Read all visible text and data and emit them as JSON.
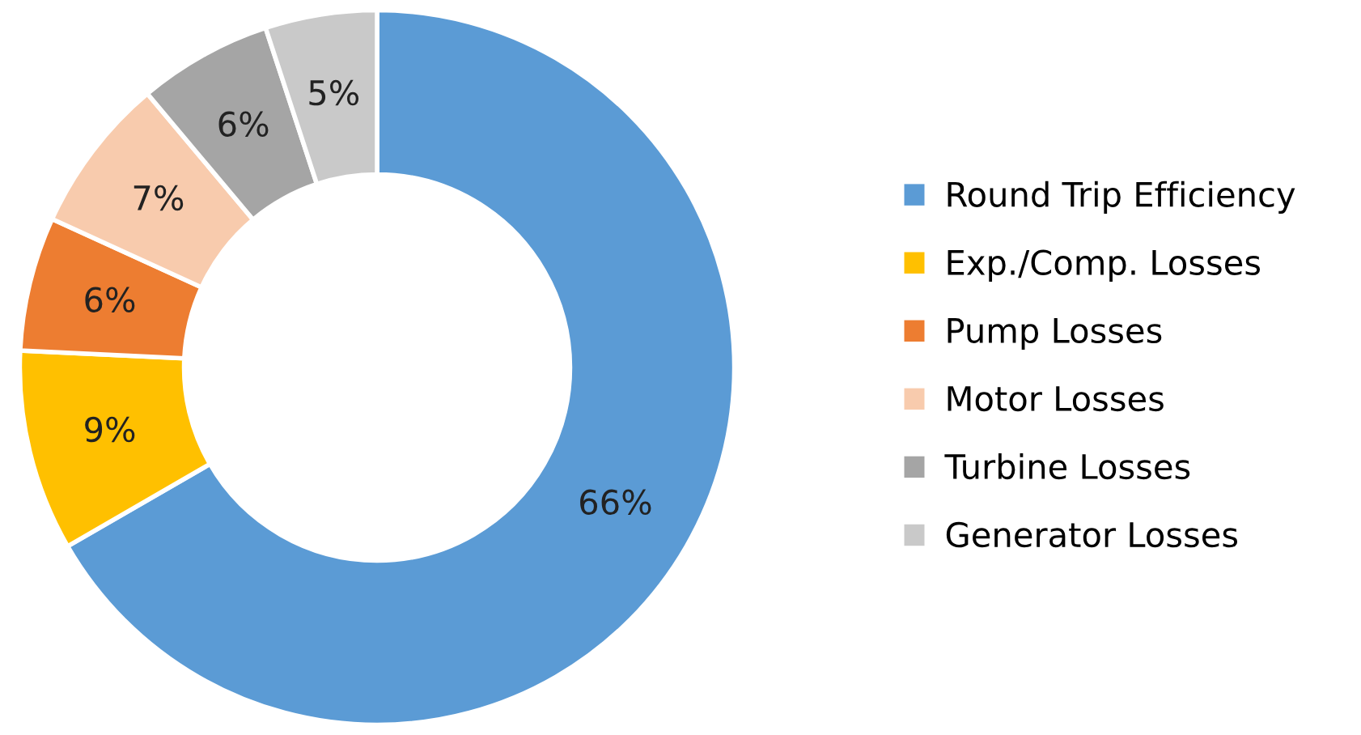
{
  "chart_data": {
    "type": "donut",
    "categories": [
      "Round Trip Efficiency",
      "Exp./Comp. Losses",
      "Pump Losses",
      "Motor Losses",
      "Turbine Losses",
      "Generator Losses"
    ],
    "values": [
      66,
      9,
      6,
      7,
      6,
      5
    ],
    "colors": [
      "#5b9bd5",
      "#ffc000",
      "#ed7d31",
      "#f8cbad",
      "#a5a5a5",
      "#c9c9c9"
    ],
    "value_labels": [
      "66%",
      "9%",
      "6%",
      "7%",
      "6%",
      "5%"
    ],
    "legend": "right"
  }
}
